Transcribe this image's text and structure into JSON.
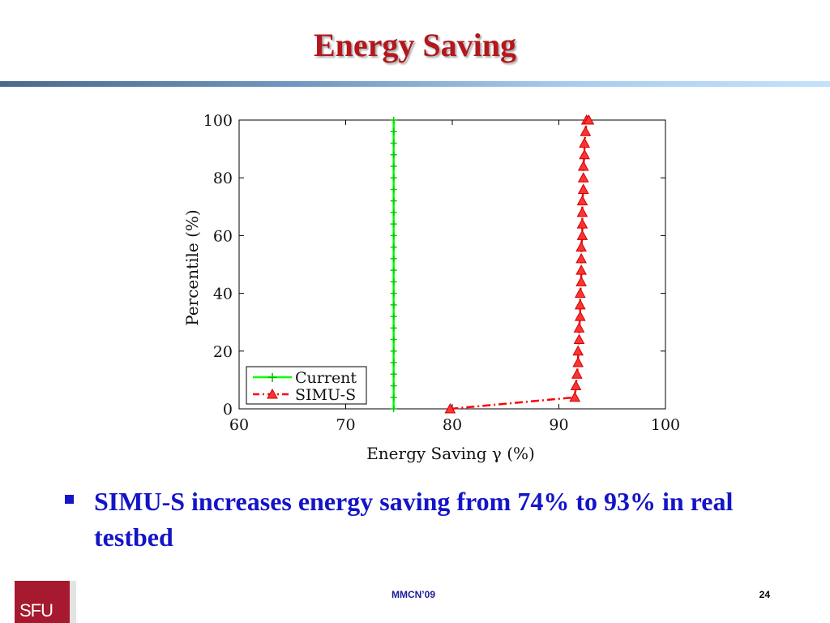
{
  "slide": {
    "title": "Energy Saving",
    "bullet": "SIMU-S increases energy saving from 74% to 93% in real testbed",
    "footer_center": "MMCN’09",
    "page_number": "24",
    "logo_text": "SFU"
  },
  "colors": {
    "title": "#b2181c",
    "bullet": "#1414c8",
    "series_current": "#00ff00",
    "series_simu": "#ff0000",
    "logo_bg": "#a6192e"
  },
  "chart_data": {
    "type": "line",
    "title": "",
    "xlabel": "Energy Saving γ (%)",
    "ylabel": "Percentile (%)",
    "xlim": [
      60,
      100
    ],
    "ylim": [
      0,
      100
    ],
    "xticks": [
      60,
      70,
      80,
      90,
      100
    ],
    "yticks": [
      0,
      20,
      40,
      60,
      80,
      100
    ],
    "grid": false,
    "legend_position": "bottom-left",
    "series": [
      {
        "name": "Current",
        "marker": "plus",
        "line_style": "solid",
        "color": "#00ff00",
        "x": [
          74.5,
          74.5,
          74.5,
          74.5,
          74.5,
          74.5,
          74.5,
          74.5,
          74.5,
          74.5,
          74.5,
          74.5,
          74.5,
          74.5,
          74.5,
          74.5,
          74.5,
          74.5,
          74.5,
          74.5,
          74.5,
          74.5,
          74.5,
          74.5,
          74.5,
          74.5
        ],
        "y": [
          0,
          4,
          8,
          12,
          16,
          20,
          24,
          28,
          32,
          36,
          40,
          44,
          48,
          52,
          56,
          60,
          64,
          68,
          72,
          76,
          80,
          84,
          88,
          92,
          96,
          100
        ]
      },
      {
        "name": "SIMU-S",
        "marker": "triangle",
        "line_style": "dash-dot",
        "color": "#ff0000",
        "x": [
          79.8,
          91.5,
          91.6,
          91.7,
          91.8,
          91.8,
          91.9,
          91.9,
          92.0,
          92.0,
          92.0,
          92.1,
          92.1,
          92.1,
          92.1,
          92.2,
          92.2,
          92.2,
          92.2,
          92.3,
          92.3,
          92.3,
          92.4,
          92.4,
          92.5,
          92.6,
          92.8
        ],
        "y": [
          0,
          4,
          8,
          12,
          16,
          20,
          24,
          28,
          32,
          36,
          40,
          44,
          48,
          52,
          56,
          60,
          64,
          68,
          72,
          76,
          80,
          84,
          88,
          92,
          96,
          100,
          100
        ]
      }
    ]
  }
}
